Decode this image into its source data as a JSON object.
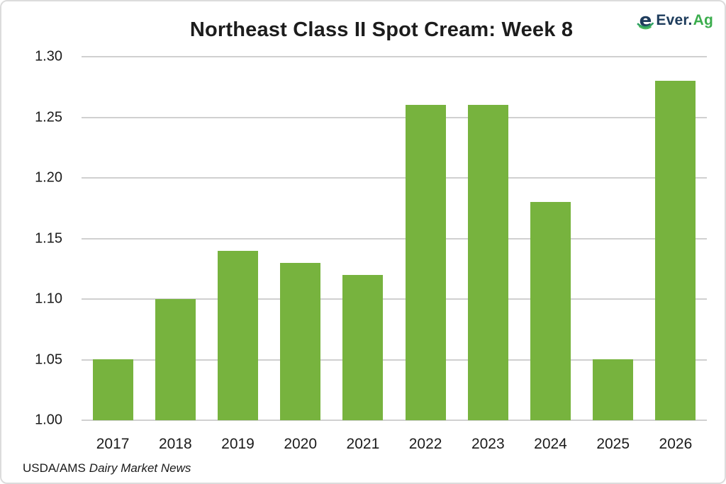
{
  "header": {
    "title": "Northeast Class II Spot Cream: Week 8"
  },
  "logo": {
    "icon": "everag-e-icon",
    "text_primary": "Ever.",
    "text_secondary": "Ag",
    "navy": "#1E3C5C",
    "green": "#3BAD4D"
  },
  "chart_data": {
    "type": "bar",
    "title": "Northeast Class II Spot Cream: Week 8",
    "categories": [
      "2017",
      "2018",
      "2019",
      "2020",
      "2021",
      "2022",
      "2023",
      "2024",
      "2025",
      "2026"
    ],
    "values": [
      1.05,
      1.1,
      1.14,
      1.13,
      1.12,
      1.26,
      1.26,
      1.18,
      1.05,
      1.28
    ],
    "xlabel": "",
    "ylabel": "",
    "ylim": [
      1.0,
      1.3
    ],
    "ytick_step": 0.05,
    "ytick_labels": [
      "1.00",
      "1.05",
      "1.10",
      "1.15",
      "1.20",
      "1.25",
      "1.30"
    ],
    "bar_color": "#77B33E",
    "grid": true,
    "gridline_color": "#d0d0d0",
    "legend": "none"
  },
  "footer": {
    "source_prefix": "USDA/AMS",
    "source_name": "Dairy Market News"
  }
}
